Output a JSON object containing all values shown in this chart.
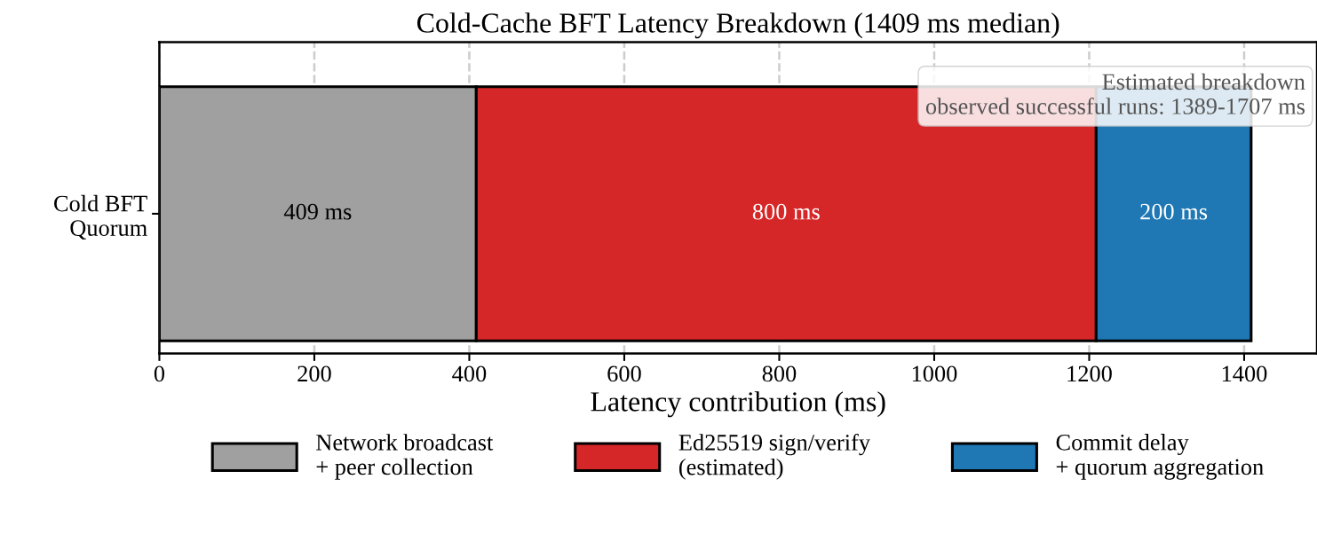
{
  "chart_data": {
    "type": "bar",
    "orientation": "horizontal",
    "stacked": true,
    "title": "Cold-Cache BFT Latency Breakdown (1409 ms median)",
    "xlabel": "Latency contribution (ms)",
    "categories": [
      "Cold BFT\nQuorum"
    ],
    "series": [
      {
        "name": "Network broadcast\n+ peer collection",
        "color": "#a0a0a0",
        "values": [
          409
        ],
        "value_labels": [
          "409 ms"
        ]
      },
      {
        "name": "Ed25519 sign/verify\n(estimated)",
        "color": "#d62728",
        "values": [
          800
        ],
        "value_labels": [
          "800 ms"
        ]
      },
      {
        "name": "Commit delay\n+ quorum aggregation",
        "color": "#1f77b4",
        "values": [
          200
        ],
        "value_labels": [
          "200 ms"
        ]
      }
    ],
    "xlim": [
      0,
      1494
    ],
    "xticks": [
      0,
      200,
      400,
      600,
      800,
      1000,
      1200,
      1400
    ],
    "grid": "x",
    "legend": "bottom",
    "annotations": [
      "Estimated breakdown\nobserved successful runs: 1389-1707 ms"
    ]
  }
}
